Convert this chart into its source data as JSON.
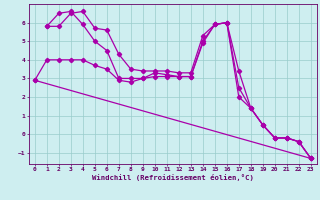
{
  "xlabel": "Windchill (Refroidissement éolien,°C)",
  "bg_color": "#ceeef0",
  "line_color": "#aa00aa",
  "grid_color": "#99cccc",
  "axis_color": "#660066",
  "tick_label_color": "#660066",
  "xlim": [
    -0.5,
    23.5
  ],
  "ylim": [
    -1.6,
    7.0
  ],
  "yticks": [
    -1,
    0,
    1,
    2,
    3,
    4,
    5,
    6
  ],
  "xticks": [
    0,
    1,
    2,
    3,
    4,
    5,
    6,
    7,
    8,
    9,
    10,
    11,
    12,
    13,
    14,
    15,
    16,
    17,
    18,
    19,
    20,
    21,
    22,
    23
  ],
  "lines": [
    {
      "x": [
        0,
        1,
        2,
        3,
        4,
        5,
        6,
        7,
        8,
        9,
        10,
        11,
        12,
        13,
        14,
        15,
        16,
        17,
        18,
        19,
        20,
        21,
        22,
        23
      ],
      "y": [
        2.9,
        4.0,
        4.0,
        4.0,
        4.0,
        3.7,
        3.5,
        2.9,
        2.8,
        3.0,
        3.3,
        3.2,
        3.1,
        3.1,
        5.0,
        5.9,
        6.0,
        3.4,
        1.4,
        0.5,
        -0.2,
        -0.2,
        -0.4,
        -1.3
      ]
    },
    {
      "x": [
        1,
        2,
        3,
        4,
        5,
        6,
        7,
        8,
        9,
        10,
        11,
        12,
        13,
        14,
        15,
        16,
        17,
        18,
        19,
        20,
        21,
        22,
        23
      ],
      "y": [
        5.8,
        5.8,
        6.5,
        6.6,
        5.7,
        5.6,
        4.3,
        3.5,
        3.4,
        3.4,
        3.4,
        3.3,
        3.3,
        5.3,
        5.9,
        6.0,
        2.0,
        1.4,
        0.5,
        -0.2,
        -0.2,
        -0.4,
        -1.3
      ]
    },
    {
      "x": [
        1,
        2,
        3,
        4,
        5,
        6,
        7,
        8,
        9,
        10,
        11,
        12,
        13,
        14,
        15,
        16,
        17,
        18,
        19,
        20,
        21,
        22,
        23
      ],
      "y": [
        5.8,
        6.5,
        6.6,
        5.9,
        5.0,
        4.5,
        3.0,
        3.0,
        3.0,
        3.1,
        3.1,
        3.1,
        3.1,
        4.9,
        5.9,
        6.0,
        2.5,
        1.4,
        0.5,
        -0.2,
        -0.2,
        -0.4,
        -1.3
      ]
    },
    {
      "x": [
        0,
        23
      ],
      "y": [
        2.9,
        -1.3
      ]
    }
  ],
  "linewidth": 0.9,
  "markersize": 2.2,
  "marker": "D"
}
